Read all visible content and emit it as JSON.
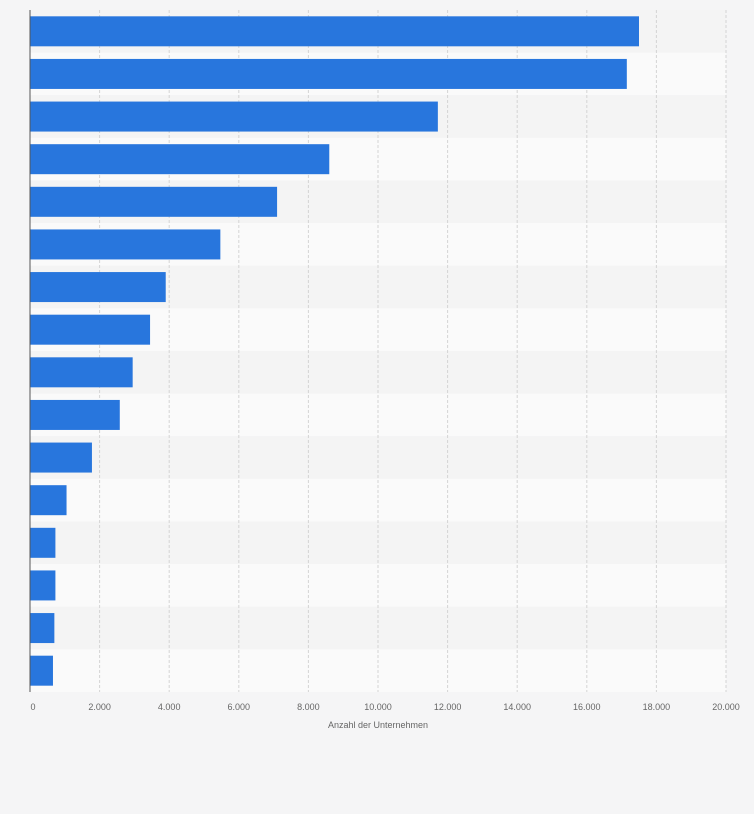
{
  "chart_data": {
    "type": "bar",
    "orientation": "horizontal",
    "categories": [
      "",
      "",
      "",
      "",
      "",
      "",
      "",
      "",
      "",
      "",
      "",
      "",
      "",
      "",
      "",
      ""
    ],
    "values": [
      17500,
      17150,
      11720,
      8600,
      7100,
      5470,
      3900,
      3450,
      2950,
      2580,
      1780,
      1050,
      730,
      730,
      700,
      660
    ],
    "title": "",
    "xlabel": "Anzahl der Unternehmen",
    "ylabel": "",
    "xlim": [
      0,
      20000
    ],
    "ticks": [
      0,
      2000,
      4000,
      6000,
      8000,
      10000,
      12000,
      14000,
      16000,
      18000,
      20000
    ],
    "tick_labels": [
      "0",
      "2.000",
      "4.000",
      "6.000",
      "8.000",
      "10.000",
      "12.000",
      "14.000",
      "16.000",
      "18.000",
      "20.000"
    ],
    "bar_color": "#2876dd",
    "grid": true
  }
}
